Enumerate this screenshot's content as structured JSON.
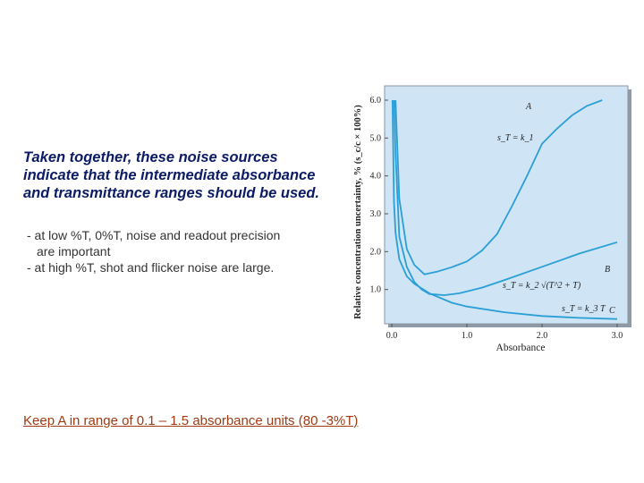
{
  "heading": {
    "line1": "Taken together, these noise sources",
    "line2": "indicate that the intermediate absorbance",
    "line3": "and transmittance ranges should be used."
  },
  "bullets": {
    "b1_line1": "- at low %T, 0%T, noise and readout precision",
    "b1_line2": "are important",
    "b2": "- at high %T, shot and flicker noise are large."
  },
  "footer": {
    "text": "Keep A in range of 0.1 – 1.5 absorbance units (80 -3%T)",
    "color": "#a23a12"
  },
  "colors": {
    "heading": "#0b1b66",
    "curve": "#2a9fd6",
    "plot_background": "#cfe4f4"
  },
  "chart_data": {
    "type": "line",
    "xlabel": "Absorbance",
    "ylabel": "Relative concentration uncertainty, % (s_c/c × 100%)",
    "xlim": [
      0,
      3.0
    ],
    "ylim": [
      0,
      6.0
    ],
    "x_ticks": [
      "0.0",
      "1.0",
      "2.0",
      "3.0"
    ],
    "y_ticks": [
      "1.0",
      "2.0",
      "3.0",
      "4.0",
      "5.0",
      "6.0"
    ],
    "grid": false,
    "series": [
      {
        "name": "A",
        "equation": "s_T = k_1",
        "x": [
          0.05,
          0.1,
          0.2,
          0.3,
          0.434,
          0.6,
          0.8,
          1.0,
          1.2,
          1.4,
          1.6,
          1.8,
          2.0,
          2.2,
          2.4,
          2.6,
          2.8
        ],
        "y": [
          6.0,
          3.4,
          2.07,
          1.65,
          1.4,
          1.47,
          1.59,
          1.74,
          2.03,
          2.46,
          3.2,
          4.0,
          4.85,
          5.25,
          5.6,
          5.85,
          6.0
        ]
      },
      {
        "name": "B",
        "equation": "s_T = k_2 √(T^2 + T)",
        "x": [
          0.03,
          0.05,
          0.1,
          0.2,
          0.3,
          0.4,
          0.5,
          0.7,
          0.9,
          1.2,
          1.5,
          2.0,
          2.5,
          3.0
        ],
        "y": [
          6.0,
          4.6,
          2.4,
          1.6,
          1.2,
          1.0,
          0.88,
          0.85,
          0.9,
          1.05,
          1.25,
          1.6,
          1.95,
          2.25
        ]
      },
      {
        "name": "C",
        "equation": "s_T = k_3 T",
        "x": [
          0.01,
          0.03,
          0.05,
          0.1,
          0.2,
          0.3,
          0.5,
          0.8,
          1.0,
          1.5,
          2.0,
          2.5,
          3.0
        ],
        "y": [
          6.0,
          3.3,
          2.5,
          1.8,
          1.35,
          1.15,
          0.9,
          0.65,
          0.55,
          0.4,
          0.3,
          0.25,
          0.22
        ]
      }
    ]
  }
}
